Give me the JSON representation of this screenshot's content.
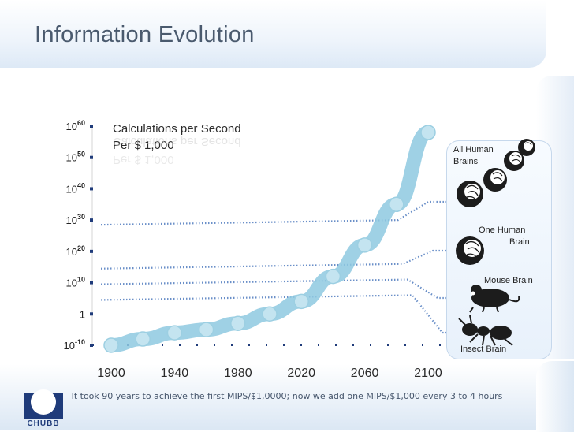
{
  "title": "Information Evolution",
  "caption": "It took 90 years to achieve the first MIPS/$1,0000;  now we add one MIPS/$1,000 every 3 to 4 hours",
  "logo_text": "CHUBB",
  "chart_data": {
    "type": "line",
    "title_line1": "Calculations per Second",
    "title_line2": "Per   $ 1,000",
    "y_scale": "log",
    "y_ticks": [
      {
        "base": "10",
        "exp": "60"
      },
      {
        "base": "10",
        "exp": "50"
      },
      {
        "base": "10",
        "exp": "40"
      },
      {
        "base": "10",
        "exp": "30"
      },
      {
        "base": "10",
        "exp": "20"
      },
      {
        "base": "10",
        "exp": "10"
      },
      {
        "base": "1",
        "exp": ""
      },
      {
        "base": "10",
        "exp": "-10"
      }
    ],
    "x_ticks": [
      "1900",
      "1940",
      "1980",
      "2020",
      "2060",
      "2100"
    ],
    "xlim": [
      1890,
      2110
    ],
    "ylim_exponent": [
      -10,
      60
    ],
    "series": [
      {
        "x": [
          1900,
          1920,
          1940,
          1960,
          1980,
          2000,
          2020,
          2040,
          2060,
          2080,
          2100
        ],
        "log10_y": [
          -10,
          -8,
          -6,
          -5,
          -3,
          0,
          4,
          12,
          22,
          35,
          58
        ]
      }
    ],
    "reference_levels": [
      {
        "label": "All Human Brains",
        "log10_y": 30
      },
      {
        "label": "One Human Brain",
        "log10_y": 16
      },
      {
        "label": "Mouse Brain",
        "log10_y": 11
      },
      {
        "label": "Insect Brain",
        "log10_y": 6
      }
    ],
    "colors": {
      "curve": "#8ec9e0",
      "marker": "#c4e4f0",
      "marker_edge": "#9ccfe2",
      "reference": "#6a8fc8",
      "axis": "#1f3b7a"
    }
  }
}
